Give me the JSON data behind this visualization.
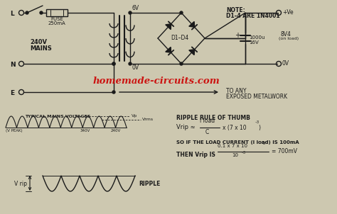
{
  "bg_color": "#cdc8b0",
  "watermark": "homemade-circuits.com",
  "watermark_color": "#cc0000",
  "text_color": "#1a1a1a",
  "note_line1": "NOTE:",
  "note_line2": "D1–4 ARE 1N4001",
  "fuse_label1": "FUSE",
  "fuse_label2": "250mA",
  "voltage_6v": "6V",
  "voltage_0v": "0V",
  "mains_label1": "240V",
  "mains_label2": "MAINS",
  "neutral_label": "N",
  "earth_label": "E",
  "live_label": "L",
  "d1d4_label": "D1–D4",
  "cap_label1": "1000u",
  "cap_label2": "16V",
  "output_pos": "+Ve",
  "output_neg": "0V",
  "output_v1": "8V4",
  "output_v2": "(on load)",
  "earth_arrow1": "TO ANY",
  "earth_arrow2": "EXPOSED METALWORK",
  "ripple_title": "RIPPLE RULE OF THUMB",
  "ripple_cond": "SO IF THE LOAD CURRENT (I load) IS 100mA",
  "ripple_then": "THEN Vrip IS",
  "ripple_result": "= 700mV",
  "typical_mains": "TYPICAL MAINS VOLTAGES",
  "vp_label": "Vp",
  "vrms_label": "Vrms",
  "v340_label": "340V",
  "v240_label": "240V",
  "vpeak_label": "(V PEAK)",
  "vrip_label": "V rip",
  "ripple_label": "RIPPLE"
}
